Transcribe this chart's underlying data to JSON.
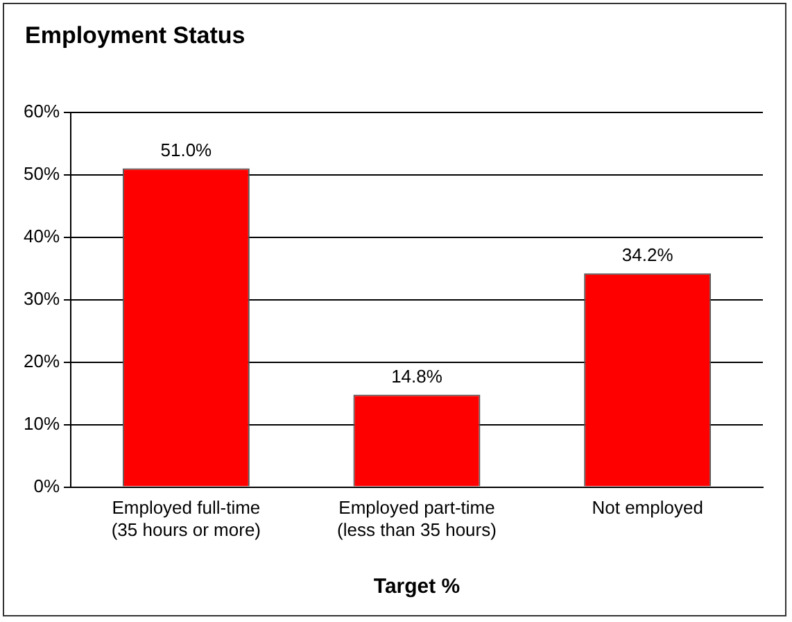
{
  "chart_data": {
    "type": "bar",
    "title": "Employment Status",
    "xlabel": "Target %",
    "categories": [
      "Employed full-time\n(35 hours or more)",
      "Employed part-time\n(less than 35 hours)",
      "Not employed"
    ],
    "values": [
      51.0,
      14.8,
      34.2
    ],
    "color": "#ff0000",
    "value_labels": [
      "51.0%",
      "14.8%",
      "34.2%"
    ],
    "ylim": [
      0,
      60
    ],
    "yticks": [
      {
        "value": 0,
        "label": "0%"
      },
      {
        "value": 10,
        "label": "10%"
      },
      {
        "value": 20,
        "label": "20%"
      },
      {
        "value": 30,
        "label": "30%"
      },
      {
        "value": 40,
        "label": "40%"
      },
      {
        "value": 50,
        "label": "50%"
      },
      {
        "value": 60,
        "label": "60%"
      }
    ],
    "grid": "y",
    "legend": false
  }
}
